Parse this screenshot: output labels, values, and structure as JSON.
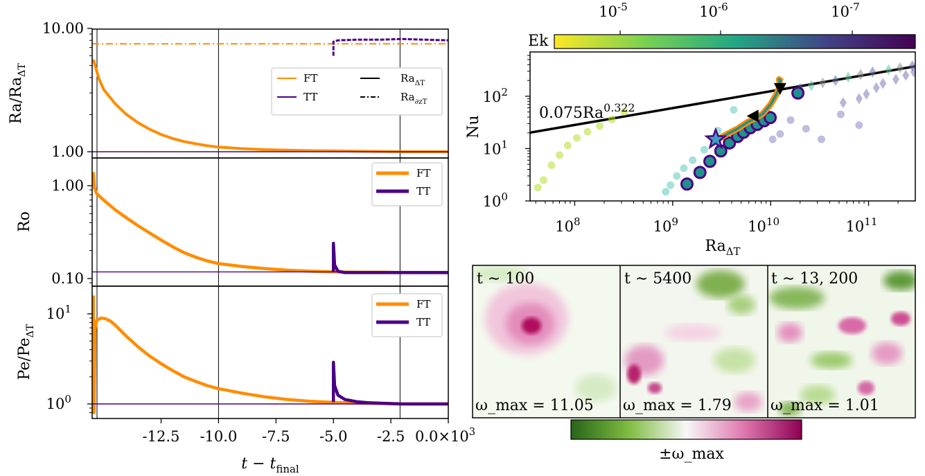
{
  "colors": {
    "ft": "#ff8c00",
    "tt": "#4b0082",
    "fit": "#000000",
    "ek_yellow": "#fde725",
    "ek_teal": "#21918c",
    "ek_purple": "#440154",
    "vort_green": "#276419",
    "vort_pink": "#c51b7d"
  },
  "chart_data": [
    {
      "id": "ra-ratio",
      "type": "line",
      "ylabel": "Ra/Ra_ΔT",
      "yscale": "log",
      "ylim": [
        0.95,
        10.0
      ],
      "y_ticks": [
        "1.00",
        "10.00"
      ],
      "xlim": [
        -15.5,
        0.0
      ],
      "vlines": [
        -10.0,
        -2.1
      ],
      "legend": {
        "placement": "right",
        "entries": [
          {
            "label": "FT",
            "color": "ft",
            "style": "solid"
          },
          {
            "label": "TT",
            "color": "tt",
            "style": "solid"
          },
          {
            "label": "Ra",
            "sub": "ΔT",
            "color": "fit",
            "style": "solid"
          },
          {
            "label": "Ra",
            "sub": "∂zT",
            "color": "fit",
            "style": "dashdot"
          }
        ]
      },
      "series": [
        {
          "name": "FT",
          "style": "solid",
          "color": "ft",
          "x": [
            -15.45,
            -15.2,
            -15.0,
            -14.5,
            -14.0,
            -13.5,
            -13.0,
            -12.5,
            -12.0,
            -11.5,
            -11.0,
            -10.5,
            -10.0,
            -9.0,
            -8.0,
            -7.0,
            -6.0,
            -5.0,
            -4.0,
            -3.0,
            -2.0,
            -1.0,
            0.0
          ],
          "y": [
            5.6,
            3.9,
            3.2,
            2.45,
            2.0,
            1.72,
            1.52,
            1.38,
            1.28,
            1.21,
            1.16,
            1.12,
            1.09,
            1.06,
            1.04,
            1.03,
            1.02,
            1.015,
            1.01,
            1.005,
            1.0,
            1.0,
            1.0
          ]
        },
        {
          "name": "FT",
          "style": "dashdot",
          "color": "ft",
          "x": [
            -15.5,
            0.0
          ],
          "y": [
            7.5,
            7.5
          ]
        },
        {
          "name": "TT",
          "style": "solid",
          "color": "tt",
          "x": [
            -15.5,
            0.0
          ],
          "y": [
            1.0,
            1.0
          ]
        },
        {
          "name": "TT",
          "style": "dashed",
          "color": "tt",
          "x": [
            -5.0,
            -5.0,
            -4.8,
            -4.0,
            -3.0,
            -2.0,
            -1.0,
            0.0
          ],
          "y": [
            6.0,
            7.8,
            8.0,
            8.1,
            8.1,
            8.2,
            8.1,
            8.0
          ]
        }
      ]
    },
    {
      "id": "ro",
      "type": "line",
      "ylabel": "Ro",
      "yscale": "log",
      "ylim": [
        0.095,
        1.6
      ],
      "y_ticks": [
        "0.10",
        "1.00"
      ],
      "xlim": [
        -15.5,
        0.0
      ],
      "vlines": [
        -10.0,
        -2.1
      ],
      "legend": {
        "placement": "top-right",
        "entries": [
          {
            "label": "FT",
            "color": "ft"
          },
          {
            "label": "TT",
            "color": "tt"
          }
        ]
      },
      "series": [
        {
          "name": "FT",
          "color": "ft",
          "x": [
            -15.45,
            -15.4,
            -15.3,
            -15.0,
            -14.5,
            -14.0,
            -13.5,
            -13.0,
            -12.5,
            -12.0,
            -11.5,
            -11.0,
            -10.5,
            -10.0,
            -9.0,
            -8.0,
            -7.0,
            -6.0,
            -5.0,
            -4.0,
            -3.0,
            -2.0,
            -1.0,
            0.0
          ],
          "y": [
            1.4,
            0.95,
            0.82,
            0.7,
            0.55,
            0.45,
            0.37,
            0.31,
            0.26,
            0.22,
            0.19,
            0.17,
            0.155,
            0.145,
            0.135,
            0.128,
            0.123,
            0.12,
            0.118,
            0.117,
            0.117,
            0.116,
            0.116,
            0.116
          ]
        },
        {
          "name": "TT",
          "color": "tt",
          "x": [
            -5.0,
            -5.0,
            -4.95,
            -4.8,
            -4.5,
            -4.0,
            -3.0,
            -2.0,
            -1.0,
            0.0
          ],
          "y": [
            0.118,
            0.24,
            0.14,
            0.12,
            0.116,
            0.116,
            0.116,
            0.116,
            0.116,
            0.116
          ]
        },
        {
          "name": "TT-baseline",
          "color": "tt",
          "thin": true,
          "x": [
            -15.5,
            0.0
          ],
          "y": [
            0.118,
            0.118
          ]
        }
      ]
    },
    {
      "id": "pe",
      "type": "line",
      "ylabel": "Pe/Pe_ΔT",
      "yscale": "log",
      "ylim": [
        0.78,
        20.0
      ],
      "y_ticks": [
        "10^0",
        "10^1"
      ],
      "xlim": [
        -15.5,
        0.0
      ],
      "x_ticks": [
        "-12.5",
        "-10.0",
        "-7.5",
        "-5.0",
        "-2.5",
        "0.0"
      ],
      "x_tick_values": [
        -12.5,
        -10.0,
        -7.5,
        -5.0,
        -2.5,
        0.0
      ],
      "x_offset_label": "×10^3",
      "xlabel": "t − t_final",
      "vlines": [
        -10.0,
        -2.1
      ],
      "legend": {
        "placement": "top-right",
        "entries": [
          {
            "label": "FT",
            "color": "ft"
          },
          {
            "label": "TT",
            "color": "tt"
          }
        ]
      },
      "series": [
        {
          "name": "FT",
          "color": "ft",
          "x": [
            -15.45,
            -15.42,
            -15.38,
            -15.3,
            -15.1,
            -14.9,
            -14.7,
            -14.5,
            -14.0,
            -13.5,
            -13.0,
            -12.5,
            -12.0,
            -11.5,
            -11.0,
            -10.5,
            -10.0,
            -9.0,
            -8.0,
            -7.0,
            -6.0,
            -5.0,
            -4.0,
            -3.0,
            -2.0,
            -1.0,
            0.0
          ],
          "y": [
            16.0,
            0.8,
            6.5,
            8.5,
            9.0,
            8.8,
            8.3,
            7.5,
            5.6,
            4.3,
            3.4,
            2.8,
            2.35,
            2.0,
            1.78,
            1.6,
            1.48,
            1.32,
            1.2,
            1.12,
            1.07,
            1.04,
            1.02,
            1.01,
            1.0,
            1.0,
            1.0
          ]
        },
        {
          "name": "TT",
          "color": "tt",
          "x": [
            -5.0,
            -5.0,
            -4.95,
            -4.8,
            -4.5,
            -4.0,
            -3.5,
            -3.0,
            -2.0,
            -1.0,
            0.0
          ],
          "y": [
            1.05,
            2.9,
            1.6,
            1.25,
            1.12,
            1.06,
            1.03,
            1.02,
            1.0,
            1.0,
            1.0
          ]
        },
        {
          "name": "TT-baseline",
          "color": "tt",
          "thin": true,
          "x": [
            -15.5,
            0.0
          ],
          "y": [
            1.0,
            1.0
          ]
        }
      ]
    },
    {
      "id": "nu-ra",
      "type": "scatter",
      "xlabel": "Ra_ΔT",
      "ylabel": "Nu",
      "xscale": "log",
      "yscale": "log",
      "xlim": [
        35000000.0,
        300000000000.0
      ],
      "ylim": [
        1.0,
        700
      ],
      "x_ticks": [
        "10^8",
        "10^9",
        "10^10",
        "10^11"
      ],
      "y_ticks": [
        "10^0",
        "10^1",
        "10^2"
      ],
      "fit_label": "0.075Ra^0.322",
      "fit": {
        "coef": 0.075,
        "exp": 0.322
      },
      "colorbar": {
        "label": "Ek",
        "ticks": [
          "10^-5",
          "10^-6",
          "10^-7"
        ],
        "placement": "top"
      },
      "series": [
        {
          "name": "green-dots",
          "marker": "circle",
          "color": "#b5de2b",
          "x": [
            42000000.0,
            48000000.0,
            58000000.0,
            70000000.0,
            85000000.0,
            105000000.0,
            135000000.0,
            180000000.0,
            240000000.0,
            320000000.0
          ],
          "y": [
            1.8,
            2.5,
            4.8,
            7.5,
            11.5,
            16.0,
            21.0,
            27.0,
            36.0,
            50.0
          ]
        },
        {
          "name": "teal-dots",
          "marker": "circle",
          "color": "#5cc8c0",
          "x": [
            850000000.0,
            950000000.0,
            1100000000.0,
            1300000000.0,
            1600000000.0,
            2100000000.0,
            2900000000.0,
            4200000000.0
          ],
          "y": [
            1.5,
            2.0,
            3.0,
            4.2,
            6.0,
            9.5,
            22.0,
            55.0
          ]
        },
        {
          "name": "purple-dots",
          "marker": "circle",
          "color": "#8b88c6",
          "x": [
            10500000000.0,
            12500000000.0,
            16000000000.0,
            23000000000.0,
            33000000000.0,
            52000000000.0,
            80000000000.0
          ],
          "y": [
            15.0,
            19.0,
            35.0,
            24.0,
            15.0,
            45.0,
            28.0
          ]
        },
        {
          "name": "diamonds",
          "marker": "diamond",
          "x": [
            55000000000.0,
            80000000000.0,
            95000000000.0,
            120000000000.0,
            140000000000.0,
            190000000000.0,
            240000000000.0,
            290000000000.0,
            20000000000.0,
            26000000000.0,
            34000000000.0,
            46000000000.0,
            62000000000.0,
            83000000000.0,
            110000000000.0,
            160000000000.0,
            210000000000.0,
            280000000000.0
          ],
          "y": [
            75.0,
            90.0,
            110.0,
            145.0,
            175.0,
            210.0,
            250.0,
            290.0,
            140.0,
            160.0,
            180.0,
            200.0,
            230.0,
            260.0,
            290.0,
            320.0,
            350.0,
            380.0
          ]
        },
        {
          "name": "TT-large",
          "marker": "circle-outlined",
          "color": "#21918c",
          "x": [
            1400000000.0,
            1900000000.0,
            2400000000.0,
            3100000000.0,
            3800000000.0,
            4600000000.0,
            5300000000.0,
            6200000000.0,
            7300000000.0,
            8600000000.0,
            9900000000.0,
            19000000000.0
          ],
          "y": [
            2.1,
            3.5,
            5.7,
            9.0,
            12.8,
            17.0,
            20.5,
            25.0,
            29.0,
            34.0,
            39.0,
            115.0
          ]
        },
        {
          "name": "FT-trajectory",
          "marker": "line",
          "color": "ft",
          "x": [
            2900000000.0,
            3600000000.0,
            4600000000.0,
            5800000000.0,
            7000000000.0,
            8300000000.0,
            10000000000.0,
            11500000000.0,
            12500000000.0,
            12200000000.0,
            13000000000.0
          ],
          "y": [
            15.0,
            19.0,
            24.0,
            32.0,
            38.0,
            46.0,
            70.0,
            110.0,
            160.0,
            210.0,
            190.0
          ]
        },
        {
          "name": "markers",
          "marker": "special",
          "x": [
            2750000000.0,
            6600000000.0,
            12500000000.0
          ],
          "y": [
            15.0,
            42.0,
            140.0
          ],
          "shapes": [
            "star",
            "left-triangle",
            "down-triangle"
          ]
        }
      ]
    }
  ],
  "snapshots": [
    {
      "label": "t ∼ 100",
      "omega": "ω_max = 11.05"
    },
    {
      "label": "t ∼ 5400",
      "omega": "ω_max = 1.79"
    },
    {
      "label": "t ∼ 13, 200",
      "omega": "ω_max = 1.01"
    }
  ],
  "snapshot_colorbar_label": "±ω_max"
}
